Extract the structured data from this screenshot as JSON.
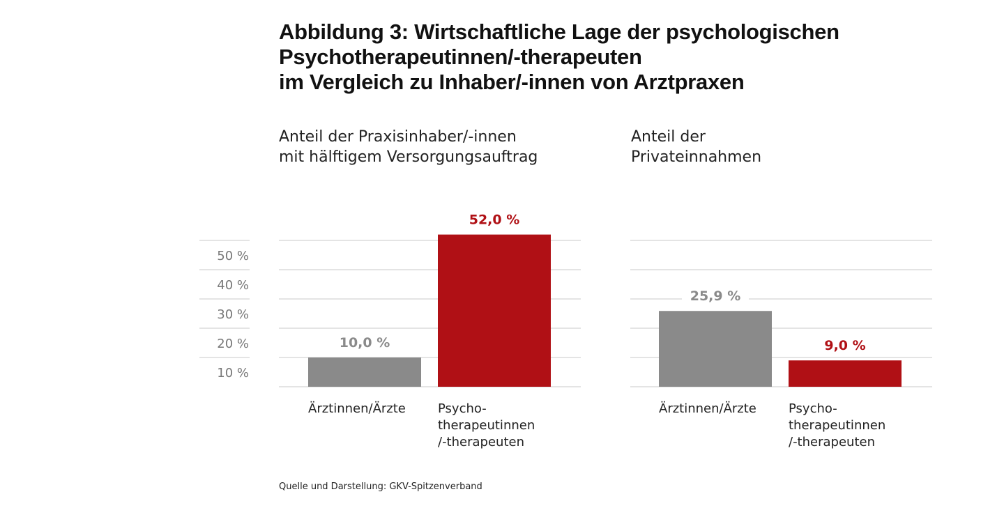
{
  "title_lines": [
    "Abbildung 3: Wirtschaftliche Lage der psychologischen",
    "Psychotherapeutinnen/-therapeuten",
    "im Vergleich zu Inhaber/-innen von Arztpraxen"
  ],
  "source": "Quelle und Darstellung: GKV-Spitzenverband",
  "y_ticks": [
    "10 %",
    "20 %",
    "30 %",
    "40 %",
    "50 %"
  ],
  "colors": {
    "gray": "#8a8a8a",
    "red": "#b01015",
    "gridline": "#c8c8c8"
  },
  "chart_data": [
    {
      "type": "bar",
      "subtitle_lines": [
        "Anteil der Praxisinhaber/-innen",
        "mit hälftigem Versorgungsauftrag"
      ],
      "ylim": [
        0,
        50
      ],
      "grid": true,
      "categories": [
        {
          "label_lines": [
            "Ärztinnen/Ärzte"
          ],
          "value": 10.0,
          "label": "10,0 %",
          "color": "gray"
        },
        {
          "label_lines": [
            "Psycho-",
            "therapeutinnen",
            "/-therapeuten"
          ],
          "value": 52.0,
          "label": "52,0 %",
          "color": "red"
        }
      ]
    },
    {
      "type": "bar",
      "subtitle_lines": [
        "Anteil der",
        "Privateinnahmen"
      ],
      "ylim": [
        0,
        50
      ],
      "grid": true,
      "categories": [
        {
          "label_lines": [
            "Ärztinnen/Ärzte"
          ],
          "value": 25.9,
          "label": "25,9 %",
          "color": "gray"
        },
        {
          "label_lines": [
            "Psycho-",
            "therapeutinnen",
            "/-therapeuten"
          ],
          "value": 9.0,
          "label": "9,0 %",
          "color": "red"
        }
      ]
    }
  ]
}
